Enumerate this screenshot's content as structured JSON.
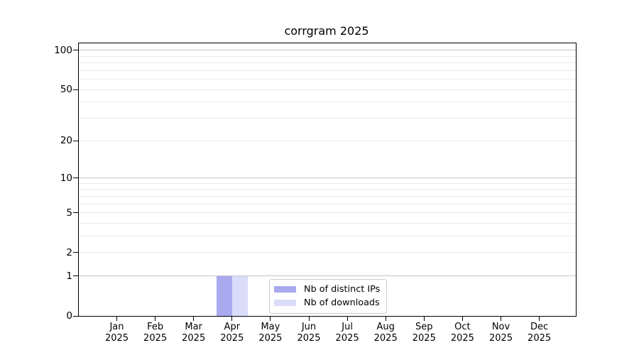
{
  "chart_data": {
    "type": "bar",
    "title": "corrgram 2025",
    "categories": [
      "Jan",
      "Feb",
      "Mar",
      "Apr",
      "May",
      "Jun",
      "Jul",
      "Aug",
      "Sep",
      "Oct",
      "Nov",
      "Dec"
    ],
    "x_tick_year": "2025",
    "series": [
      {
        "name": "Nb of distinct IPs",
        "color": "#a8a9ef",
        "values": [
          0,
          0,
          0,
          1,
          0,
          0,
          0,
          0,
          0,
          0,
          0,
          0
        ]
      },
      {
        "name": "Nb of downloads",
        "color": "#dbdcf9",
        "values": [
          0,
          0,
          0,
          1,
          0,
          0,
          0,
          0,
          0,
          0,
          0,
          0
        ]
      }
    ],
    "y_axis": {
      "scale": "log1p",
      "tick_labels": [
        0,
        1,
        2,
        5,
        10,
        20,
        50,
        100
      ],
      "major_gridlines": [
        1,
        10,
        100
      ],
      "minor_gridlines": [
        2,
        3,
        4,
        5,
        6,
        7,
        8,
        9,
        20,
        30,
        40,
        50,
        60,
        70,
        80,
        90
      ],
      "ylim": [
        0,
        113
      ],
      "grid": true
    },
    "legend": {
      "position": "lower center",
      "items": [
        "Nb of distinct IPs",
        "Nb of downloads"
      ]
    }
  },
  "colors": {
    "background": "#ffffff",
    "axis": "#000000",
    "major_grid": "#c6c6c6",
    "minor_grid": "#e9e9e9",
    "legend_border": "#cccccc",
    "text": "#000000"
  }
}
